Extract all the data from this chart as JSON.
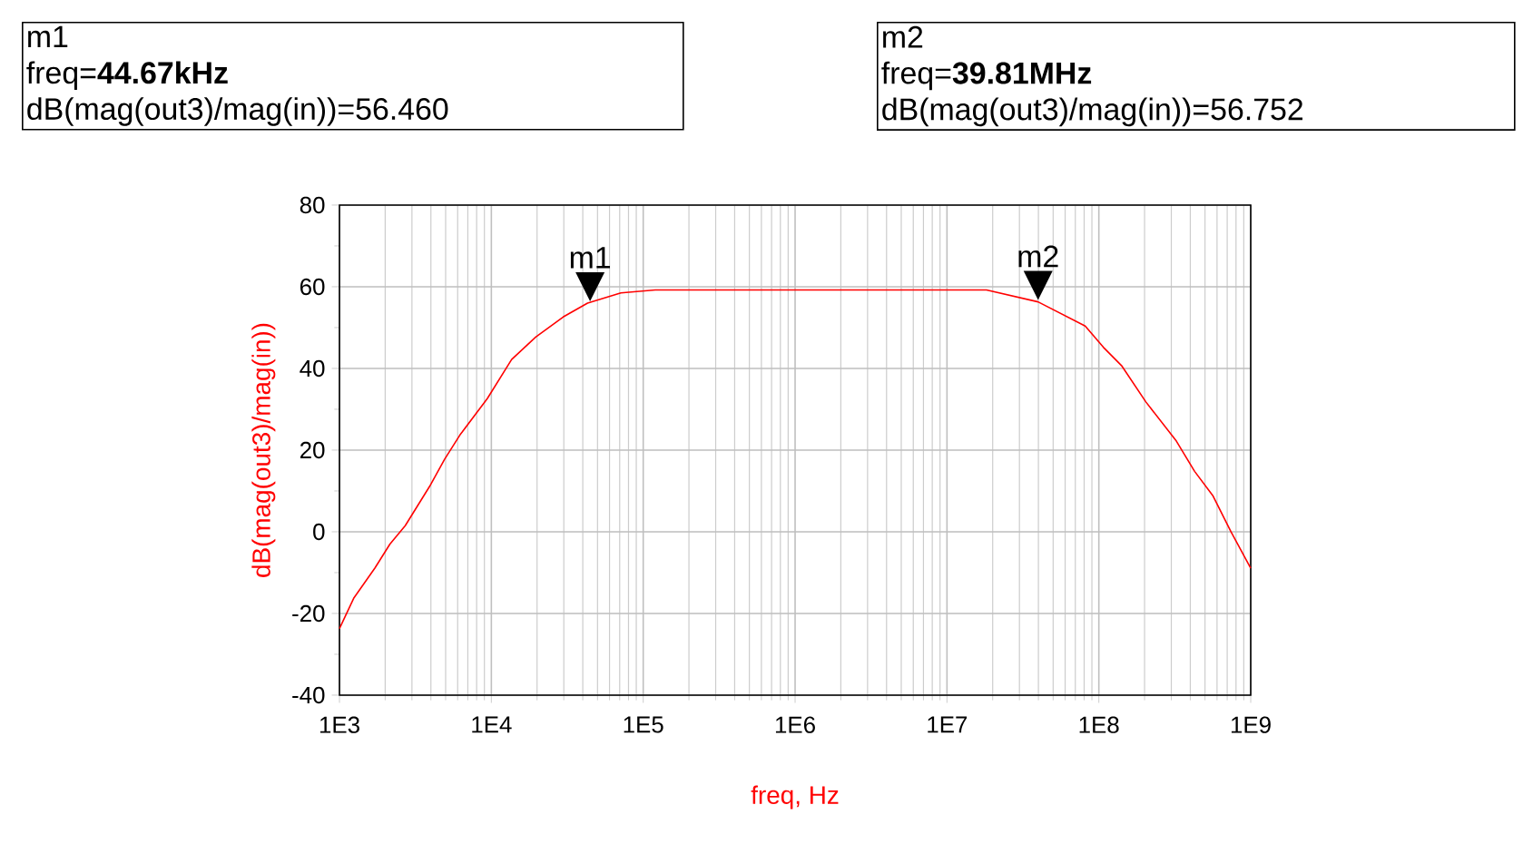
{
  "chart_data": {
    "type": "line",
    "xlabel": "freq, Hz",
    "ylabel": "dB(mag(out3)/mag(in))",
    "log": "x",
    "grid": true,
    "marker": "none",
    "line_style": "solid",
    "x": [
      1000,
      1240,
      1710,
      2150,
      2710,
      3920,
      4930,
      6210,
      9400,
      13600,
      19600,
      29700,
      43000,
      71300,
      120000,
      300000,
      1000000,
      3000000,
      10000000,
      18200000,
      39800000,
      81300000,
      107000000,
      141000000,
      204000000,
      324000000,
      427000000,
      562000000,
      741000000,
      1000000000
    ],
    "series": [
      {
        "color": "#ff0000",
        "values": [
          -23.7,
          -16.3,
          -8.9,
          -3,
          1.5,
          11.1,
          17.8,
          23.7,
          32.6,
          42.2,
          47.7,
          52.6,
          56.0,
          58.5,
          59.2,
          59.2,
          59.2,
          59.2,
          59.2,
          59.2,
          56.3,
          50.4,
          45.2,
          40.7,
          31.8,
          22.2,
          14.8,
          8.9,
          0,
          -8.9
        ]
      }
    ],
    "xlim": [
      1000,
      1000000000
    ],
    "xticks": [
      {
        "value": 1000,
        "label": "1E3"
      },
      {
        "value": 10000,
        "label": "1E4"
      },
      {
        "value": 100000,
        "label": "1E5"
      },
      {
        "value": 1000000,
        "label": "1E6"
      },
      {
        "value": 10000000,
        "label": "1E7"
      },
      {
        "value": 100000000,
        "label": "1E8"
      },
      {
        "value": 1000000000,
        "label": "1E9"
      }
    ],
    "ylim": [
      -40,
      80
    ],
    "yticks": [
      -40,
      -20,
      0,
      20,
      40,
      60,
      80
    ],
    "annotations": [
      {
        "text": "m1",
        "x": 44670,
        "y": 56.46
      },
      {
        "text": "m2",
        "x": 39810000,
        "y": 56.752
      },
      "m1",
      "freq=**44.67kHz**",
      "dB(mag(out3)/mag(in))=56.460",
      "m2",
      "freq=**39.81MHz**",
      "dB(mag(out3)/mag(in))=56.752"
    ]
  }
}
